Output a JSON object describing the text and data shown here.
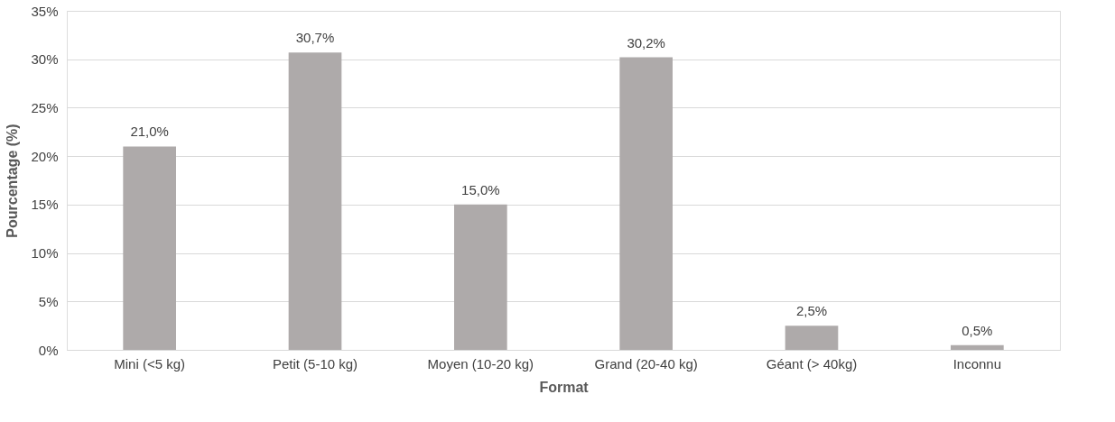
{
  "chart_data": {
    "type": "bar",
    "xlabel": "Format",
    "ylabel": "Pourcentage (%)",
    "categories": [
      "Mini (<5 kg)",
      "Petit (5-10 kg)",
      "Moyen (10-20 kg)",
      "Grand (20-40 kg)",
      "Géant (> 40kg)",
      "Inconnu"
    ],
    "values": [
      21.0,
      30.7,
      15.0,
      30.2,
      2.5,
      0.5
    ],
    "value_labels": [
      "21,0%",
      "30,7%",
      "15,0%",
      "30,2%",
      "2,5%",
      "0,5%"
    ],
    "color": "#aeaaaa",
    "ylim": [
      0,
      35
    ],
    "yticks": [
      {
        "value": 0,
        "label": "0%"
      },
      {
        "value": 5,
        "label": "5%"
      },
      {
        "value": 10,
        "label": "10%"
      },
      {
        "value": 15,
        "label": "15%"
      },
      {
        "value": 20,
        "label": "20%"
      },
      {
        "value": 25,
        "label": "25%"
      },
      {
        "value": 30,
        "label": "30%"
      },
      {
        "value": 35,
        "label": "35%"
      }
    ],
    "grid": "y"
  }
}
